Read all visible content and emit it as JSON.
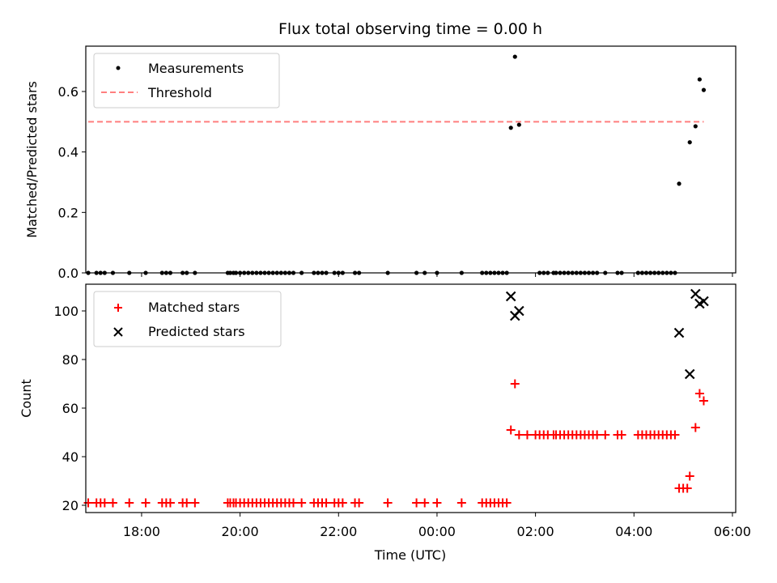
{
  "chart_data": [
    {
      "type": "scatter",
      "title": "Flux total observing time = 0.00 h",
      "xlabel": "",
      "ylabel": "Matched/Predicted stars",
      "xlim": [
        "16:52",
        "06:04"
      ],
      "ylim": [
        0,
        0.75
      ],
      "y_ticks": [
        "0.0",
        "0.2",
        "0.4",
        "0.6"
      ],
      "legend": "top-left",
      "series": [
        {
          "name": "Measurements",
          "marker": "dot",
          "color": "#000000",
          "points": [
            [
              "16:55",
              0
            ],
            [
              "17:05",
              0
            ],
            [
              "17:10",
              0
            ],
            [
              "17:15",
              0
            ],
            [
              "17:25",
              0
            ],
            [
              "17:45",
              0
            ],
            [
              "18:05",
              0
            ],
            [
              "18:25",
              0
            ],
            [
              "18:30",
              0
            ],
            [
              "18:35",
              0
            ],
            [
              "18:50",
              0
            ],
            [
              "18:55",
              0
            ],
            [
              "19:05",
              0
            ],
            [
              "19:45",
              0
            ],
            [
              "19:48",
              0
            ],
            [
              "19:52",
              0
            ],
            [
              "19:55",
              0
            ],
            [
              "20:00",
              0
            ],
            [
              "20:05",
              0
            ],
            [
              "20:10",
              0
            ],
            [
              "20:15",
              0
            ],
            [
              "20:20",
              0
            ],
            [
              "20:25",
              0
            ],
            [
              "20:30",
              0
            ],
            [
              "20:35",
              0
            ],
            [
              "20:40",
              0
            ],
            [
              "20:45",
              0
            ],
            [
              "20:50",
              0
            ],
            [
              "20:55",
              0
            ],
            [
              "21:00",
              0
            ],
            [
              "21:05",
              0
            ],
            [
              "21:15",
              0
            ],
            [
              "21:30",
              0
            ],
            [
              "21:35",
              0
            ],
            [
              "21:40",
              0
            ],
            [
              "21:45",
              0
            ],
            [
              "21:55",
              0
            ],
            [
              "22:00",
              0
            ],
            [
              "22:05",
              0
            ],
            [
              "22:20",
              0
            ],
            [
              "22:25",
              0
            ],
            [
              "23:00",
              0
            ],
            [
              "23:35",
              0
            ],
            [
              "23:45",
              0
            ],
            [
              "00:00",
              0
            ],
            [
              "00:30",
              0
            ],
            [
              "00:55",
              0
            ],
            [
              "01:00",
              0
            ],
            [
              "01:05",
              0
            ],
            [
              "01:10",
              0
            ],
            [
              "01:15",
              0
            ],
            [
              "01:20",
              0
            ],
            [
              "01:25",
              0
            ],
            [
              "01:30",
              0.48
            ],
            [
              "01:35",
              0.715
            ],
            [
              "01:40",
              0.49
            ],
            [
              "02:05",
              0
            ],
            [
              "02:10",
              0
            ],
            [
              "02:15",
              0
            ],
            [
              "02:22",
              0
            ],
            [
              "02:25",
              0
            ],
            [
              "02:30",
              0
            ],
            [
              "02:35",
              0
            ],
            [
              "02:40",
              0
            ],
            [
              "02:45",
              0
            ],
            [
              "02:50",
              0
            ],
            [
              "02:55",
              0
            ],
            [
              "03:00",
              0
            ],
            [
              "03:05",
              0
            ],
            [
              "03:10",
              0
            ],
            [
              "03:15",
              0
            ],
            [
              "03:25",
              0
            ],
            [
              "03:40",
              0
            ],
            [
              "03:45",
              0
            ],
            [
              "04:05",
              0
            ],
            [
              "04:10",
              0
            ],
            [
              "04:15",
              0
            ],
            [
              "04:20",
              0
            ],
            [
              "04:25",
              0
            ],
            [
              "04:30",
              0
            ],
            [
              "04:35",
              0
            ],
            [
              "04:40",
              0
            ],
            [
              "04:45",
              0
            ],
            [
              "04:50",
              0
            ],
            [
              "04:55",
              0.295
            ],
            [
              "05:08",
              0.432
            ],
            [
              "05:15",
              0.485
            ],
            [
              "05:20",
              0.64
            ],
            [
              "05:25",
              0.605
            ]
          ]
        },
        {
          "name": "Threshold",
          "style": "dashed-line",
          "color": "#ff7f7f",
          "points": [
            [
              "16:55",
              0.5
            ],
            [
              "05:25",
              0.5
            ]
          ]
        }
      ]
    },
    {
      "type": "scatter",
      "title": "",
      "xlabel": "Time (UTC)",
      "ylabel": "Count",
      "xlim": [
        "16:52",
        "06:04"
      ],
      "ylim": [
        17,
        111
      ],
      "x_ticks": [
        "18:00",
        "20:00",
        "22:00",
        "00:00",
        "02:00",
        "04:00",
        "06:00"
      ],
      "y_ticks": [
        "20",
        "40",
        "60",
        "80",
        "100"
      ],
      "legend": "top-left",
      "series": [
        {
          "name": "Matched stars",
          "marker": "plus",
          "color": "#ff0000",
          "points": [
            [
              "16:55",
              21
            ],
            [
              "17:05",
              21
            ],
            [
              "17:10",
              21
            ],
            [
              "17:15",
              21
            ],
            [
              "17:25",
              21
            ],
            [
              "17:45",
              21
            ],
            [
              "18:05",
              21
            ],
            [
              "18:25",
              21
            ],
            [
              "18:30",
              21
            ],
            [
              "18:35",
              21
            ],
            [
              "18:50",
              21
            ],
            [
              "18:55",
              21
            ],
            [
              "19:05",
              21
            ],
            [
              "19:45",
              21
            ],
            [
              "19:48",
              21
            ],
            [
              "19:52",
              21
            ],
            [
              "19:55",
              21
            ],
            [
              "20:00",
              21
            ],
            [
              "20:05",
              21
            ],
            [
              "20:10",
              21
            ],
            [
              "20:15",
              21
            ],
            [
              "20:20",
              21
            ],
            [
              "20:25",
              21
            ],
            [
              "20:30",
              21
            ],
            [
              "20:35",
              21
            ],
            [
              "20:40",
              21
            ],
            [
              "20:45",
              21
            ],
            [
              "20:50",
              21
            ],
            [
              "20:55",
              21
            ],
            [
              "21:00",
              21
            ],
            [
              "21:05",
              21
            ],
            [
              "21:15",
              21
            ],
            [
              "21:30",
              21
            ],
            [
              "21:35",
              21
            ],
            [
              "21:40",
              21
            ],
            [
              "21:45",
              21
            ],
            [
              "21:55",
              21
            ],
            [
              "22:00",
              21
            ],
            [
              "22:05",
              21
            ],
            [
              "22:20",
              21
            ],
            [
              "22:25",
              21
            ],
            [
              "23:00",
              21
            ],
            [
              "23:35",
              21
            ],
            [
              "23:45",
              21
            ],
            [
              "00:00",
              21
            ],
            [
              "00:30",
              21
            ],
            [
              "00:55",
              21
            ],
            [
              "01:00",
              21
            ],
            [
              "01:05",
              21
            ],
            [
              "01:10",
              21
            ],
            [
              "01:15",
              21
            ],
            [
              "01:20",
              21
            ],
            [
              "01:25",
              21
            ],
            [
              "01:30",
              51
            ],
            [
              "01:35",
              70
            ],
            [
              "01:40",
              49
            ],
            [
              "01:50",
              49
            ],
            [
              "02:00",
              49
            ],
            [
              "02:05",
              49
            ],
            [
              "02:10",
              49
            ],
            [
              "02:15",
              49
            ],
            [
              "02:22",
              49
            ],
            [
              "02:25",
              49
            ],
            [
              "02:30",
              49
            ],
            [
              "02:35",
              49
            ],
            [
              "02:40",
              49
            ],
            [
              "02:45",
              49
            ],
            [
              "02:50",
              49
            ],
            [
              "02:55",
              49
            ],
            [
              "03:00",
              49
            ],
            [
              "03:05",
              49
            ],
            [
              "03:10",
              49
            ],
            [
              "03:15",
              49
            ],
            [
              "03:25",
              49
            ],
            [
              "03:40",
              49
            ],
            [
              "03:45",
              49
            ],
            [
              "04:05",
              49
            ],
            [
              "04:10",
              49
            ],
            [
              "04:15",
              49
            ],
            [
              "04:20",
              49
            ],
            [
              "04:25",
              49
            ],
            [
              "04:30",
              49
            ],
            [
              "04:35",
              49
            ],
            [
              "04:40",
              49
            ],
            [
              "04:45",
              49
            ],
            [
              "04:50",
              49
            ],
            [
              "04:55",
              27
            ],
            [
              "05:00",
              27
            ],
            [
              "05:05",
              27
            ],
            [
              "05:08",
              32
            ],
            [
              "05:15",
              52
            ],
            [
              "05:20",
              66
            ],
            [
              "05:25",
              63
            ]
          ]
        },
        {
          "name": "Predicted stars",
          "marker": "x",
          "color": "#000000",
          "points": [
            [
              "01:30",
              106
            ],
            [
              "01:35",
              98
            ],
            [
              "01:40",
              100
            ],
            [
              "04:55",
              91
            ],
            [
              "05:08",
              74
            ],
            [
              "05:15",
              107
            ],
            [
              "05:20",
              103
            ],
            [
              "05:25",
              104
            ]
          ]
        }
      ]
    }
  ]
}
